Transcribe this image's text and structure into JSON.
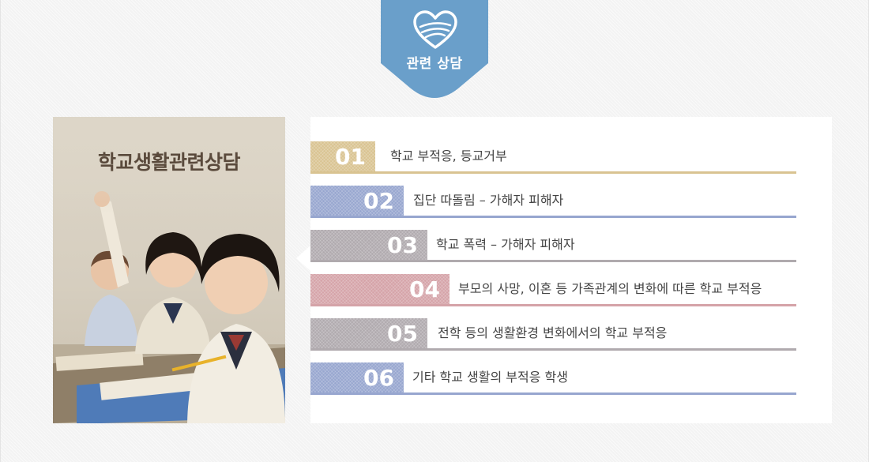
{
  "badge": {
    "label": "관련 상담",
    "color": "#6a9fca",
    "icon": "heart-icon"
  },
  "card": {
    "title": "학교생활관련상담"
  },
  "items": [
    {
      "number": "01",
      "text": "학교 부적응, 등교거부",
      "color": "#d9c391"
    },
    {
      "number": "02",
      "text": "집단 따돌림 – 가해자 피해자",
      "color": "#97a6cf"
    },
    {
      "number": "03",
      "text": "학교 폭력 – 가해자 피해자",
      "color": "#b0aaae"
    },
    {
      "number": "04",
      "text": "부모의 사망, 이혼 등 가족관계의 변화에 따른 학교 부적응",
      "color": "#d5a3a8"
    },
    {
      "number": "05",
      "text": "전학 등의 생활환경 변화에서의 학교 부적응",
      "color": "#b0aaae"
    },
    {
      "number": "06",
      "text": "기타 학교 생활의 부적응 학생",
      "color": "#97a6cf"
    }
  ]
}
